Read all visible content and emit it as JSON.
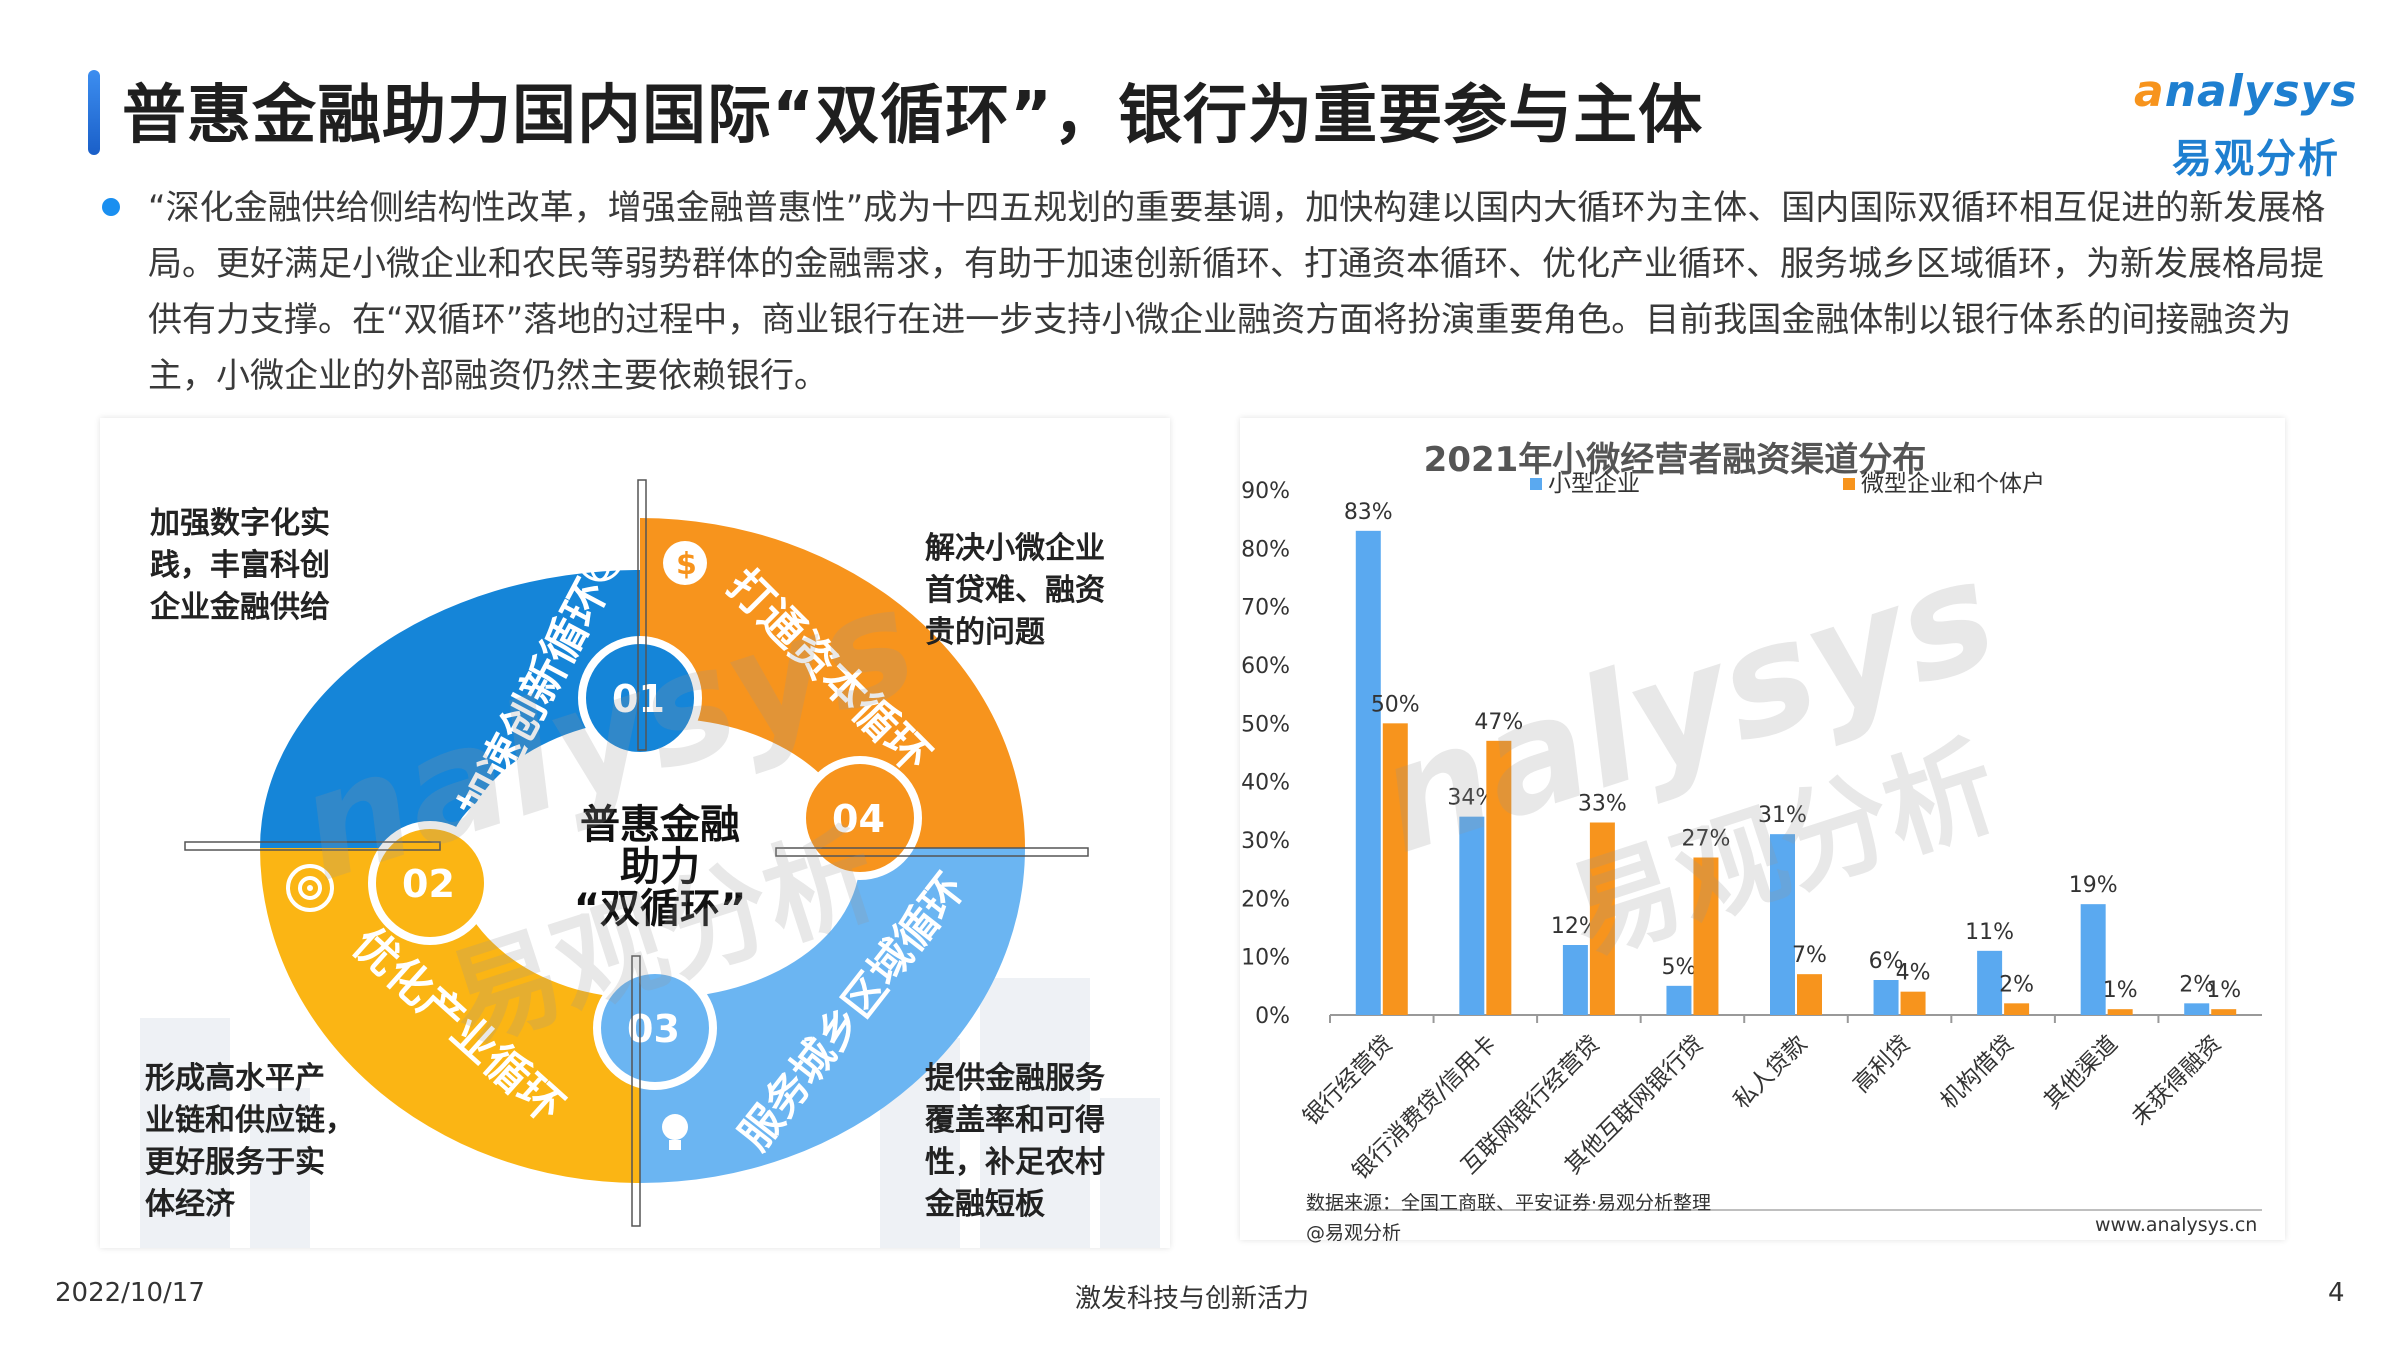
{
  "slide": {
    "title": "普惠金融助力国内国际“双循环”，银行为重要参与主体",
    "logo_en": "nalysys",
    "logo_en_prefix": "a",
    "logo_cn": "易观分析",
    "intro": "“深化金融供给侧结构性改革，增强金融普惠性”成为十四五规划的重要基调，加快构建以国内大循环为主体、国内国际双循环相互促进的新发展格局。更好满足小微企业和农民等弱势群体的金融需求，有助于加速创新循环、打通资本循环、优化产业循环、服务城乡区域循环，为新发展格局提供有力支撑。在“双循环”落地的过程中，商业银行在进一步支持小微企业融资方面将扮演重要角色。目前我国金融体制以银行体系的间接融资为主，小微企业的外部融资仍然主要依赖银行。",
    "date": "2022/10/17",
    "footer_center": "激发科技与创新活力",
    "page_number": "4"
  },
  "diagram": {
    "center_line1": "普惠金融",
    "center_line2": "助力",
    "center_line3": "“双循环”",
    "segments": [
      {
        "num": "01",
        "label": "加速创新循环",
        "color": "#1585d8",
        "icon": "globe-icon"
      },
      {
        "num": "02",
        "label": "优化产业循环",
        "color": "#fbb514",
        "icon": "target-icon"
      },
      {
        "num": "03",
        "label": "服务城乡区域循环",
        "color": "#6bb5f2",
        "icon": "lightbulb-icon"
      },
      {
        "num": "04",
        "label": "打通资本循环",
        "color": "#f7941d",
        "icon": "coin-icon"
      }
    ],
    "corner_tl": [
      "加强数字化实",
      "践，丰富科创",
      "企业金融供给"
    ],
    "corner_tr": [
      "解决小微企业",
      "首贷难、融资",
      "贵的问题"
    ],
    "corner_bl": [
      "形成高水平产",
      "业链和供应链，",
      "更好服务于实",
      "体经济"
    ],
    "corner_br": [
      "提供金融服务",
      "覆盖率和可得",
      "性，补足农村",
      "金融短板"
    ]
  },
  "watermark": {
    "en": "nalysys",
    "cn": "易观分析"
  },
  "chart_data": {
    "type": "bar",
    "title": "2021年小微经营者融资渠道分布",
    "categories": [
      "银行经营贷",
      "银行消费贷/信用卡",
      "互联网银行经营贷",
      "其他互联网银行贷",
      "私人贷款",
      "高利贷",
      "机构借贷",
      "其他渠道",
      "未获得融资"
    ],
    "series": [
      {
        "name": "小型企业",
        "color": "#5aa9f0",
        "values": [
          83,
          34,
          12,
          5,
          31,
          6,
          11,
          19,
          2
        ]
      },
      {
        "name": "微型企业和个体户",
        "color": "#f7941d",
        "values": [
          50,
          47,
          33,
          27,
          7,
          4,
          2,
          1,
          1
        ]
      }
    ],
    "value_labels": {
      "小型企业": [
        "83%",
        "34%",
        "12%",
        "5%",
        "31%",
        "6%",
        "11%",
        "19%",
        "2%"
      ],
      "微型企业和个体户": [
        "50%",
        "47%",
        "33%",
        "27%",
        "7%",
        "4%",
        "2%",
        "1%",
        "1%"
      ]
    },
    "ylim": [
      0,
      90
    ],
    "yticks": [
      "0%",
      "10%",
      "20%",
      "30%",
      "40%",
      "50%",
      "60%",
      "70%",
      "80%",
      "90%"
    ],
    "legend_position": "top",
    "grid": false,
    "source": "数据来源：全国工商联、平安证券·易观分析整理",
    "credit": "@易观分析",
    "website": "www.analysys.cn"
  }
}
